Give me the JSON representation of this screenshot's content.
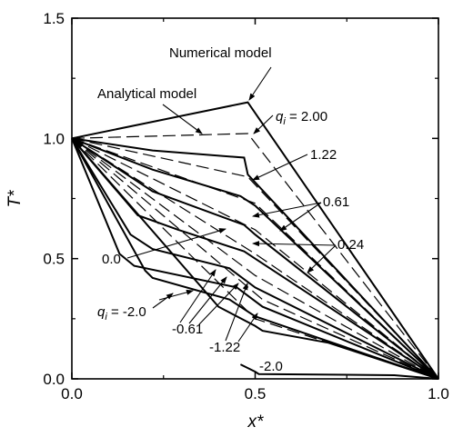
{
  "chart_data": {
    "type": "line",
    "xlabel": "x*",
    "ylabel": "T*",
    "xlim": [
      0.0,
      1.0
    ],
    "ylim": [
      0.0,
      1.5
    ],
    "x_ticks": [
      "0.0",
      "0.5",
      "1.0"
    ],
    "y_ticks": [
      "0.0",
      "0.5",
      "1.0",
      "1.5"
    ],
    "grid": false,
    "series": [
      {
        "name": "Numerical model",
        "style": "solid",
        "points": [
          [
            0,
            1.0
          ],
          [
            0.48,
            1.15
          ],
          [
            1.0,
            0.0
          ]
        ]
      },
      {
        "name": "Analytical model",
        "style": "dashed",
        "points": [
          [
            0,
            1.0
          ],
          [
            0.48,
            1.02
          ],
          [
            1.0,
            0.0
          ]
        ]
      },
      {
        "style": "solid",
        "points": [
          [
            0,
            1.0
          ],
          [
            0.22,
            0.95
          ],
          [
            0.47,
            0.92
          ],
          [
            0.48,
            0.85
          ],
          [
            1.0,
            0.0
          ]
        ]
      },
      {
        "style": "dashed",
        "points": [
          [
            0,
            1.0
          ],
          [
            0.48,
            0.84
          ],
          [
            1.0,
            0.0
          ]
        ]
      },
      {
        "style": "solid",
        "points": [
          [
            0,
            1.0
          ],
          [
            0.22,
            0.87
          ],
          [
            0.46,
            0.76
          ],
          [
            0.5,
            0.72
          ],
          [
            1.0,
            0.0
          ]
        ]
      },
      {
        "style": "dashed",
        "points": [
          [
            0,
            1.0
          ],
          [
            0.5,
            0.73
          ],
          [
            1.0,
            0.0
          ]
        ]
      },
      {
        "style": "solid",
        "points": [
          [
            0,
            1.0
          ],
          [
            0.22,
            0.78
          ],
          [
            0.47,
            0.64
          ],
          [
            0.5,
            0.6
          ],
          [
            1.0,
            0.0
          ]
        ]
      },
      {
        "style": "dashed",
        "points": [
          [
            0,
            1.0
          ],
          [
            0.5,
            0.62
          ],
          [
            1.0,
            0.0
          ]
        ]
      },
      {
        "style": "solid",
        "points": [
          [
            0,
            1.0
          ],
          [
            0.18,
            0.68
          ],
          [
            0.29,
            0.62
          ],
          [
            0.47,
            0.53
          ],
          [
            0.5,
            0.5
          ],
          [
            1.0,
            0.0
          ]
        ]
      },
      {
        "style": "dashed",
        "points": [
          [
            0,
            1.0
          ],
          [
            0.5,
            0.52
          ],
          [
            1.0,
            0.0
          ]
        ]
      },
      {
        "style": "solid",
        "points": [
          [
            0,
            1.0
          ],
          [
            0.16,
            0.6
          ],
          [
            0.22,
            0.54
          ],
          [
            0.43,
            0.46
          ],
          [
            0.5,
            0.38
          ],
          [
            1.0,
            0.0
          ]
        ]
      },
      {
        "style": "dashed",
        "points": [
          [
            0,
            1.0
          ],
          [
            0.5,
            0.43
          ],
          [
            1.0,
            0.0
          ]
        ]
      },
      {
        "style": "solid",
        "points": [
          [
            0,
            1.0
          ],
          [
            0.13,
            0.52
          ],
          [
            0.17,
            0.47
          ],
          [
            0.45,
            0.38
          ],
          [
            0.52,
            0.3
          ],
          [
            1.0,
            0.0
          ]
        ]
      },
      {
        "style": "dashed",
        "points": [
          [
            0,
            1.0
          ],
          [
            0.52,
            0.33
          ],
          [
            1.0,
            0.0
          ]
        ]
      },
      {
        "style": "solid",
        "points": [
          [
            0,
            1.0
          ],
          [
            0.2,
            0.45
          ],
          [
            0.22,
            0.42
          ],
          [
            0.43,
            0.33
          ],
          [
            0.5,
            0.26
          ],
          [
            1.0,
            0.0
          ]
        ]
      },
      {
        "style": "dashed",
        "points": [
          [
            0,
            1.0
          ],
          [
            0.5,
            0.25
          ],
          [
            1.0,
            0.0
          ]
        ]
      },
      {
        "style": "solid",
        "points": [
          [
            0,
            1.0
          ],
          [
            0.4,
            0.3
          ],
          [
            0.5,
            0.22
          ],
          [
            0.52,
            0.2
          ],
          [
            0.7,
            0.15
          ],
          [
            1.0,
            0.0
          ]
        ]
      },
      {
        "style": "solid",
        "points": [
          [
            0.46,
            0.06
          ],
          [
            0.5,
            0.03
          ],
          [
            0.51,
            0.02
          ],
          [
            0.88,
            0.015
          ],
          [
            1.0,
            0.0
          ]
        ]
      }
    ],
    "annotations": [
      {
        "id": "numerical",
        "text": "Numerical model"
      },
      {
        "id": "analytical",
        "text": "Analytical model"
      },
      {
        "id": "q200",
        "prefix": "q",
        "sub": "i",
        "text": " = 2.00"
      },
      {
        "id": "q122",
        "text": "1.22"
      },
      {
        "id": "q061",
        "text": "0.61"
      },
      {
        "id": "q024",
        "text": "0.24"
      },
      {
        "id": "q00",
        "text": "0.0"
      },
      {
        "id": "qm20",
        "prefix": "q",
        "sub": "i",
        "text": " = -2.0"
      },
      {
        "id": "qm061",
        "text": "-0.61"
      },
      {
        "id": "qm122",
        "text": "-1.22"
      },
      {
        "id": "qm20b",
        "text": "-2.0"
      }
    ]
  }
}
